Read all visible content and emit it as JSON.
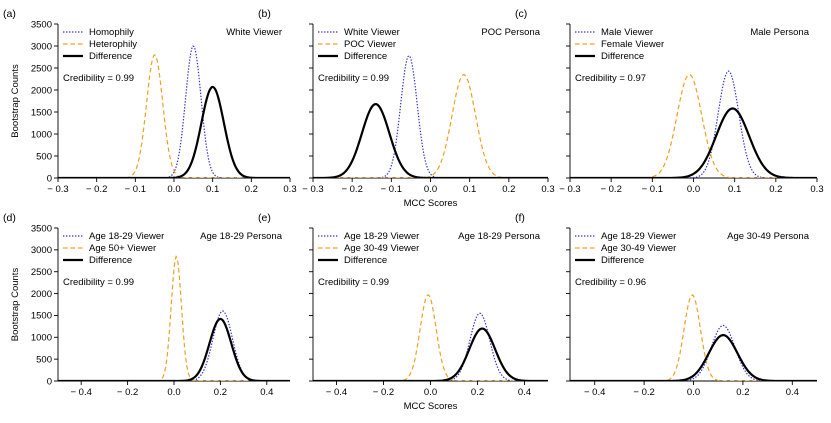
{
  "colors": {
    "blue": "#3030d0",
    "orange": "#f0a020",
    "black": "#000000"
  },
  "chart_data": [
    {
      "type": "line",
      "letter": "(a)",
      "persona_label": "White Viewer",
      "credibility": "Credibility = 0.99",
      "xlim": [
        -0.3,
        0.3
      ],
      "ylim": [
        0,
        3500
      ],
      "xticks": [
        -0.3,
        -0.2,
        -0.1,
        0.0,
        0.1,
        0.2,
        0.3
      ],
      "xtick_labels": [
        "− 0.3",
        "− 0.2",
        "− 0.1",
        "0.0",
        "0.1",
        "0.2",
        "0.3"
      ],
      "yticks": [
        0,
        500,
        1000,
        1500,
        2000,
        2500,
        3000,
        3500
      ],
      "ytick_labels": [
        "0",
        "500",
        "1000",
        "1500",
        "2000",
        "2500",
        "3000",
        "3500"
      ],
      "ylabel": "Bootstrap Counts",
      "xlabel": "",
      "series": [
        {
          "name": "Homophily",
          "style": "dotted",
          "color": "blue",
          "mean": 0.05,
          "sd": 0.02,
          "peak": 3000
        },
        {
          "name": "Heterophily",
          "style": "dashed",
          "color": "orange",
          "mean": -0.05,
          "sd": 0.021,
          "peak": 2800
        },
        {
          "name": "Difference",
          "style": "solid",
          "color": "black",
          "mean": 0.1,
          "sd": 0.029,
          "peak": 2070
        }
      ]
    },
    {
      "type": "line",
      "letter": "(b)",
      "persona_label": "POC Persona",
      "credibility": "Credibility = 0.99",
      "xlim": [
        -0.3,
        0.3
      ],
      "ylim": [
        0,
        3500
      ],
      "xticks": [
        -0.3,
        -0.2,
        -0.1,
        0.0,
        0.1,
        0.2,
        0.3
      ],
      "xtick_labels": [
        "− 0.3",
        "− 0.2",
        "− 0.1",
        "0.0",
        "0.1",
        "0.2",
        "0.3"
      ],
      "yticks": [
        0,
        500,
        1000,
        1500,
        2000,
        2500,
        3000,
        3500
      ],
      "ytick_labels": [],
      "ylabel": "",
      "xlabel": "MCC Scores",
      "series": [
        {
          "name": "White Viewer",
          "style": "dotted",
          "color": "blue",
          "mean": -0.055,
          "sd": 0.021,
          "peak": 2780
        },
        {
          "name": "POC Viewer",
          "style": "dashed",
          "color": "orange",
          "mean": 0.085,
          "sd": 0.03,
          "peak": 2350
        },
        {
          "name": "Difference",
          "style": "solid",
          "color": "black",
          "mean": -0.14,
          "sd": 0.035,
          "peak": 1680
        }
      ]
    },
    {
      "type": "line",
      "letter": "(c)",
      "persona_label": "Male Persona",
      "credibility": "Credibility = 0.97",
      "xlim": [
        -0.3,
        0.3
      ],
      "ylim": [
        0,
        3500
      ],
      "xticks": [
        -0.3,
        -0.2,
        -0.1,
        0.0,
        0.1,
        0.2,
        0.3
      ],
      "xtick_labels": [
        "− 0.3",
        "− 0.2",
        "− 0.1",
        "0.0",
        "0.1",
        "0.2",
        "0.3"
      ],
      "yticks": [
        0,
        500,
        1000,
        1500,
        2000,
        2500,
        3000,
        3500
      ],
      "ytick_labels": [],
      "ylabel": "",
      "xlabel": "",
      "series": [
        {
          "name": "Male Viewer",
          "style": "dotted",
          "color": "blue",
          "mean": 0.085,
          "sd": 0.025,
          "peak": 2430
        },
        {
          "name": "Female Viewer",
          "style": "dashed",
          "color": "orange",
          "mean": -0.01,
          "sd": 0.03,
          "peak": 2350
        },
        {
          "name": "Difference",
          "style": "solid",
          "color": "black",
          "mean": 0.095,
          "sd": 0.04,
          "peak": 1580
        }
      ]
    },
    {
      "type": "line",
      "letter": "(d)",
      "persona_label": "Age 18-29 Persona",
      "credibility": "Credibility = 0.99",
      "xlim": [
        -0.5,
        0.5
      ],
      "ylim": [
        0,
        3500
      ],
      "xticks": [
        -0.4,
        -0.2,
        0.0,
        0.2,
        0.4
      ],
      "xtick_labels": [
        "− 0.4",
        "− 0.2",
        "0.0",
        "0.2",
        "0.4"
      ],
      "yticks": [
        0,
        500,
        1000,
        1500,
        2000,
        2500,
        3000,
        3500
      ],
      "ytick_labels": [
        "0",
        "500",
        "1000",
        "1500",
        "2000",
        "2500",
        "3000",
        "3500"
      ],
      "ylabel": "Bootstrap Counts",
      "xlabel": "",
      "series": [
        {
          "name": "Age 18-29 Viewer",
          "style": "dotted",
          "color": "blue",
          "mean": 0.21,
          "sd": 0.042,
          "peak": 1600
        },
        {
          "name": "Age 50+ Viewer",
          "style": "dashed",
          "color": "orange",
          "mean": 0.01,
          "sd": 0.022,
          "peak": 2850
        },
        {
          "name": "Difference",
          "style": "solid",
          "color": "black",
          "mean": 0.2,
          "sd": 0.047,
          "peak": 1420
        }
      ]
    },
    {
      "type": "line",
      "letter": "(e)",
      "persona_label": "Age 18-29 Persona",
      "credibility": "Credibility = 0.99",
      "xlim": [
        -0.5,
        0.5
      ],
      "ylim": [
        0,
        3500
      ],
      "xticks": [
        -0.4,
        -0.2,
        0.0,
        0.2,
        0.4
      ],
      "xtick_labels": [
        "− 0.4",
        "− 0.2",
        "0.0",
        "0.2",
        "0.4"
      ],
      "yticks": [
        0,
        500,
        1000,
        1500,
        2000,
        2500,
        3000,
        3500
      ],
      "ytick_labels": [],
      "ylabel": "",
      "xlabel": "MCC Scores",
      "series": [
        {
          "name": "Age 18-29 Viewer",
          "style": "dotted",
          "color": "blue",
          "mean": 0.21,
          "sd": 0.042,
          "peak": 1550
        },
        {
          "name": "Age 30-49 Viewer",
          "style": "dashed",
          "color": "orange",
          "mean": -0.01,
          "sd": 0.034,
          "peak": 1970
        },
        {
          "name": "Difference",
          "style": "solid",
          "color": "black",
          "mean": 0.22,
          "sd": 0.055,
          "peak": 1200
        }
      ]
    },
    {
      "type": "line",
      "letter": "(f)",
      "persona_label": "Age 30-49 Persona",
      "credibility": "Credibility = 0.96",
      "xlim": [
        -0.5,
        0.5
      ],
      "ylim": [
        0,
        3500
      ],
      "xticks": [
        -0.4,
        -0.2,
        0.0,
        0.2,
        0.4
      ],
      "xtick_labels": [
        "− 0.4",
        "− 0.2",
        "0.0",
        "0.2",
        "0.4"
      ],
      "yticks": [
        0,
        500,
        1000,
        1500,
        2000,
        2500,
        3000,
        3500
      ],
      "ytick_labels": [],
      "ylabel": "",
      "xlabel": "",
      "series": [
        {
          "name": "Age 18-29 Viewer",
          "style": "dotted",
          "color": "blue",
          "mean": 0.12,
          "sd": 0.048,
          "peak": 1270
        },
        {
          "name": "Age 30-49 Viewer",
          "style": "dashed",
          "color": "orange",
          "mean": -0.005,
          "sd": 0.033,
          "peak": 1970
        },
        {
          "name": "Difference",
          "style": "solid",
          "color": "black",
          "mean": 0.12,
          "sd": 0.058,
          "peak": 1050
        }
      ]
    }
  ]
}
